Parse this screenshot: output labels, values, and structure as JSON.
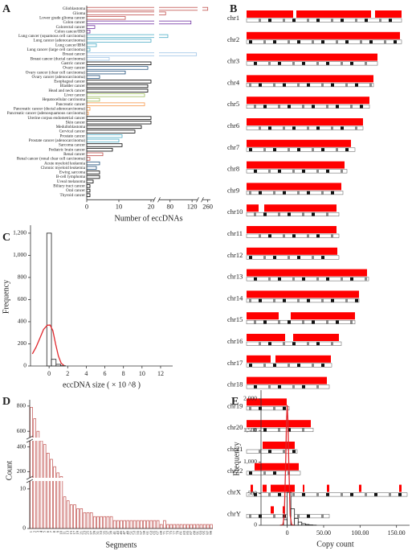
{
  "chart_data": [
    {
      "type": "hbar-broken",
      "panel": "A",
      "xlabel": "Number of eccDNAs",
      "categories": [
        "Glioblastoma",
        "Glioma",
        "Lower grade glioma cancer",
        "Colon cancer",
        "Colorectal cancer",
        "Colon cancer/IBD",
        "Lung cancer (squamous cell carcinoma)",
        "Lung cancer (adenocarcinoma)",
        "Lung cancer/IBM",
        "Lung cancer (large cell carcinoma)",
        "Breast cancer",
        "Breast cancer (ductal carcinoma)",
        "Gastric cancer",
        "Ovary cancer",
        "Ovary cancer (clear cell carcinoma)",
        "Ovary cancer (adenocarcinoma)",
        "Esophageal cancer",
        "Bladder cancer",
        "Head and neck cancer",
        "Liver cancer",
        "Hepatocellular carcinoma",
        "Pancreatic cancer",
        "Pancreatic cancer (ductal adenocarcinoma)",
        "Pancreatic cancer (adenosquamous carcinoma)",
        "Uterine corpus endometrial cancer",
        "Skin cancer",
        "Medulloblastoma",
        "Cervical cancer",
        "Prostate cancer",
        "Prostate cancer (adenocarcinoma)",
        "Sarcoma cancer",
        "Pediatric brain cancer",
        "Renal cancer",
        "Renal cancer (renal clear cell carcinoma)",
        "Acute myeloid leukemia",
        "Chronic myeloid leukemia",
        "Ewing sarcoma",
        "B-cell lymphoma",
        "Uveal melanoma",
        "Biliary tract cancer",
        "Oral cancer",
        "Thyroid cancer"
      ],
      "values": [
        260,
        72,
        12,
        118,
        2.5,
        1,
        76,
        20,
        3,
        1,
        128,
        7,
        20,
        19,
        12,
        4,
        20,
        19,
        19,
        18,
        4,
        18,
        1,
        0.5,
        20,
        20,
        17,
        15,
        11,
        10,
        11,
        8,
        5,
        1,
        4,
        3,
        4,
        4,
        2,
        1,
        1,
        1
      ],
      "colors": [
        "#c0504d",
        "#c0504d",
        "#c0504d",
        "#7030a0",
        "#7030a0",
        "#7030a0",
        "#4bacc6",
        "#4bacc6",
        "#4bacc6",
        "#4bacc6",
        "#9dc3e6",
        "#9dc3e6",
        "#000000",
        "#1f4e79",
        "#1f4e79",
        "#1f4e79",
        "#000000",
        "#000000",
        "#000000",
        "#9bbb59",
        "#9bbb59",
        "#f79646",
        "#f79646",
        "#f79646",
        "#000000",
        "#000000",
        "#000000",
        "#000000",
        "#4bacc6",
        "#4bacc6",
        "#000000",
        "#000000",
        "#c0504d",
        "#c0504d",
        "#1f4e79",
        "#1f4e79",
        "#000000",
        "#000000",
        "#000000",
        "#000000",
        "#000000",
        "#000000"
      ],
      "axis_segments": [
        [
          0,
          21
        ],
        [
          60,
          130
        ],
        [
          250,
          265
        ]
      ],
      "xticks": [
        0,
        10,
        20,
        80,
        120,
        260
      ]
    },
    {
      "type": "ideogram",
      "panel": "B",
      "band_color": "#ff0000",
      "chromosomes": [
        {
          "name": "chr1",
          "length": 193,
          "red": [
            [
              0,
              58
            ],
            [
              62,
              155
            ],
            [
              160,
              193
            ]
          ]
        },
        {
          "name": "chr2",
          "length": 193,
          "red": [
            [
              0,
              191
            ]
          ]
        },
        {
          "name": "chr3",
          "length": 163,
          "red": [
            [
              0,
              163
            ]
          ]
        },
        {
          "name": "chr4",
          "length": 158,
          "red": [
            [
              0,
              158
            ]
          ]
        },
        {
          "name": "chr5",
          "length": 153,
          "red": [
            [
              0,
              153
            ]
          ]
        },
        {
          "name": "chr6",
          "length": 145,
          "red": [
            [
              0,
              145
            ]
          ]
        },
        {
          "name": "chr7",
          "length": 135,
          "red": [
            [
              0,
              130
            ]
          ]
        },
        {
          "name": "chr8",
          "length": 125,
          "red": [
            [
              0,
              122
            ]
          ]
        },
        {
          "name": "chr9",
          "length": 120,
          "red": [
            [
              0,
              118
            ]
          ]
        },
        {
          "name": "chr10",
          "length": 115,
          "red": [
            [
              0,
              15
            ],
            [
              22,
              112
            ]
          ]
        },
        {
          "name": "chr11",
          "length": 115,
          "red": [
            [
              0,
              112
            ]
          ]
        },
        {
          "name": "chr12",
          "length": 115,
          "red": [
            [
              0,
              113
            ]
          ]
        },
        {
          "name": "chr13",
          "length": 152,
          "red": [
            [
              0,
              150
            ]
          ]
        },
        {
          "name": "chr14",
          "length": 140,
          "red": [
            [
              0,
              140
            ]
          ]
        },
        {
          "name": "chr15",
          "length": 135,
          "red": [
            [
              0,
              40
            ],
            [
              55,
              135
            ]
          ]
        },
        {
          "name": "chr16",
          "length": 118,
          "red": [
            [
              0,
              48
            ],
            [
              58,
              115
            ]
          ]
        },
        {
          "name": "chr17",
          "length": 106,
          "red": [
            [
              0,
              30
            ],
            [
              36,
              105
            ]
          ]
        },
        {
          "name": "chr18",
          "length": 103,
          "red": [
            [
              0,
              100
            ]
          ]
        },
        {
          "name": "chr19",
          "length": 53,
          "red": [
            [
              0,
              50
            ]
          ]
        },
        {
          "name": "chr20",
          "length": 83,
          "red": [
            [
              0,
              80
            ]
          ]
        },
        {
          "name": "chr21",
          "length": 63,
          "red": [
            [
              20,
              60
            ]
          ]
        },
        {
          "name": "chr22",
          "length": 67,
          "red": [
            [
              10,
              65
            ]
          ]
        },
        {
          "name": "chrX",
          "length": 200,
          "red": [
            [
              5,
              8
            ],
            [
              20,
              25
            ],
            [
              30,
              60
            ],
            [
              70,
              72
            ],
            [
              100,
              103
            ],
            [
              140,
              143
            ],
            [
              190,
              193
            ]
          ]
        },
        {
          "name": "chrY",
          "length": 103,
          "red": [
            [
              30,
              34
            ],
            [
              45,
              48
            ]
          ]
        }
      ]
    },
    {
      "type": "histogram",
      "panel": "C",
      "xlabel": "eccDNA size ( × 10 ^8 )",
      "ylabel": "Frequency",
      "bins": [
        -0.25,
        0.25,
        0.75,
        1.25,
        1.75
      ],
      "counts": [
        1200,
        60,
        15,
        3
      ],
      "color": "#000000",
      "curve": {
        "color": "#e0262b",
        "x": [
          -1.8,
          -1.4,
          -1.0,
          -0.6,
          -0.2,
          0.1,
          0.4,
          0.7,
          1.0,
          1.3,
          1.6
        ],
        "y": [
          110,
          170,
          250,
          330,
          368,
          370,
          320,
          200,
          90,
          25,
          5
        ]
      },
      "xlim": [
        -2,
        13.3
      ],
      "ylim": [
        0,
        1250
      ],
      "xticks": [
        0,
        2,
        4,
        6,
        8,
        10,
        12
      ],
      "yticks": [
        0,
        200,
        400,
        600,
        800,
        {
          "value": 1000,
          "label": "1,000"
        },
        {
          "value": 1200,
          "label": "1,200"
        }
      ]
    },
    {
      "type": "bar-broken",
      "panel": "D",
      "xlabel": "Segments",
      "ylabel": "Count",
      "color": "#c0504d",
      "categories": [
        "1",
        "2",
        "3",
        "4",
        "5",
        "6",
        "7",
        "8",
        "9",
        "10",
        "11",
        "13",
        "15",
        "17",
        "19",
        "21",
        "23",
        "25",
        "27",
        "29",
        "31",
        "33",
        "35",
        "37",
        "39",
        "41",
        "43",
        "45",
        "47",
        "49",
        "51",
        "53",
        "55",
        "57",
        "59",
        "61",
        "63",
        "65",
        "67",
        "69",
        "71",
        "73",
        "75",
        "77",
        "79",
        "81",
        "83",
        "85",
        "87",
        "89",
        "91",
        "93",
        "95",
        "97",
        "99"
      ],
      "values": [
        790,
        700,
        600,
        520,
        420,
        350,
        300,
        240,
        190,
        160,
        8,
        7,
        6,
        6,
        5,
        5,
        4,
        4,
        4,
        3,
        3,
        3,
        3,
        3,
        3,
        2,
        2,
        2,
        2,
        2,
        2,
        2,
        2,
        2,
        2,
        2,
        2,
        2,
        2,
        1,
        2,
        1,
        1,
        1,
        1,
        1,
        1,
        1,
        1,
        1,
        1,
        1,
        1,
        1,
        1
      ],
      "axis_segments": [
        [
          0,
          12
        ],
        [
          150,
          450
        ],
        [
          550,
          850
        ]
      ],
      "yticks": [
        0,
        10,
        200,
        400,
        600,
        800
      ]
    },
    {
      "type": "histogram",
      "panel": "E",
      "xlabel": "Copy count",
      "ylabel": "Frequency",
      "bins": [
        -5,
        0,
        5,
        10,
        15,
        20,
        25,
        30,
        35,
        40
      ],
      "counts": [
        90,
        520,
        260,
        110,
        50,
        25,
        12,
        6,
        3
      ],
      "color": "#000000",
      "curve": {
        "color": "#e0262b",
        "x": [
          -10,
          -6,
          -4,
          -2,
          -1,
          0,
          1,
          2,
          4,
          6,
          10
        ],
        "y": [
          0,
          7,
          161,
          1026,
          1628,
          1900,
          1628,
          1026,
          161,
          7,
          0
        ]
      },
      "xlim": [
        -36,
        168
      ],
      "ylim": [
        0,
        2100
      ],
      "xticks": [
        0,
        {
          "value": 50,
          "label": "50.00"
        },
        {
          "value": 100,
          "label": "100.00"
        },
        {
          "value": 150,
          "label": "150.00"
        }
      ],
      "yticks": [
        0,
        500,
        {
          "value": 1000,
          "label": "1,000"
        },
        {
          "value": 1500,
          "label": "1,500"
        },
        {
          "value": 2000,
          "label": "2,000"
        }
      ]
    }
  ]
}
